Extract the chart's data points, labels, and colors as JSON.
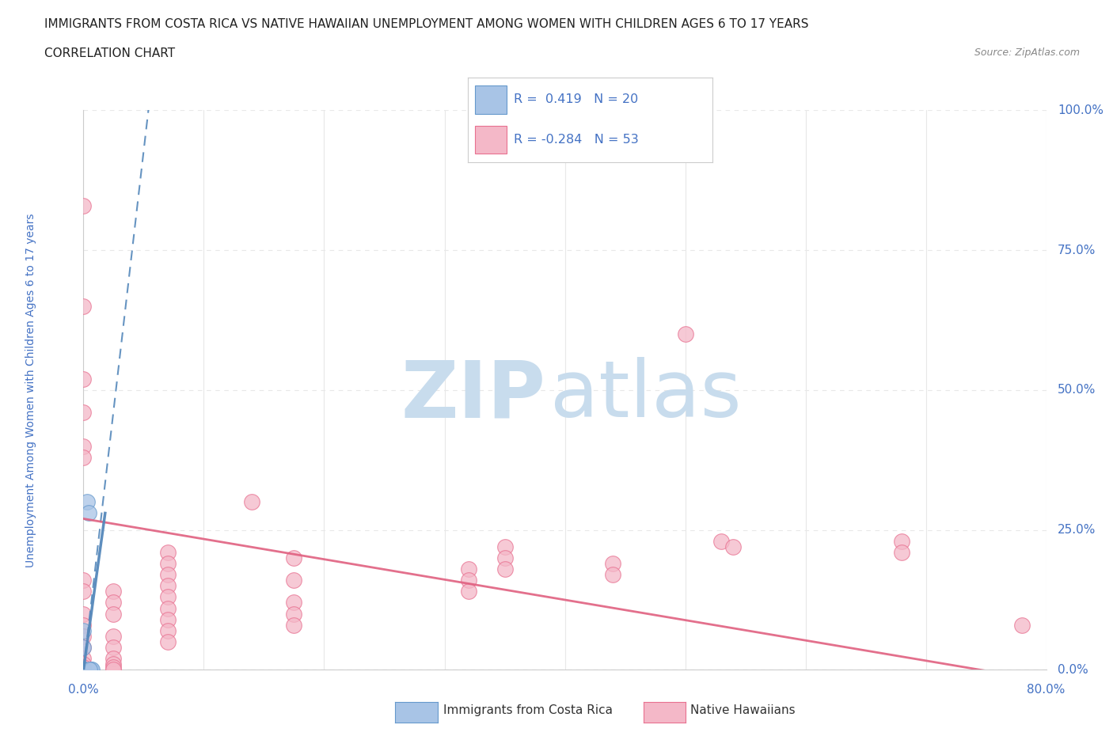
{
  "title": "IMMIGRANTS FROM COSTA RICA VS NATIVE HAWAIIAN UNEMPLOYMENT AMONG WOMEN WITH CHILDREN AGES 6 TO 17 YEARS",
  "subtitle": "CORRELATION CHART",
  "source": "Source: ZipAtlas.com",
  "ylabel": "Unemployment Among Women with Children Ages 6 to 17 years",
  "xlim": [
    0,
    0.8
  ],
  "ylim": [
    0,
    1.0
  ],
  "ytick_vals": [
    0.0,
    0.25,
    0.5,
    0.75,
    1.0
  ],
  "ytick_labels": [
    "0.0%",
    "25.0%",
    "50.0%",
    "75.0%",
    "100.0%"
  ],
  "r_blue": 0.419,
  "n_blue": 20,
  "r_pink": -0.284,
  "n_pink": 53,
  "blue_scatter_color": "#a8c4e6",
  "blue_edge_color": "#6699cc",
  "pink_scatter_color": "#f4b8c8",
  "pink_edge_color": "#e87090",
  "trend_blue_color": "#5588bb",
  "trend_pink_color": "#e06080",
  "blue_scatter": [
    [
      0.0,
      0.0
    ],
    [
      0.0,
      0.0
    ],
    [
      0.0,
      0.0
    ],
    [
      0.0,
      0.0
    ],
    [
      0.0,
      0.0
    ],
    [
      0.0,
      0.0
    ],
    [
      0.0,
      0.0
    ],
    [
      0.0,
      0.0
    ],
    [
      0.0,
      0.0
    ],
    [
      0.0,
      0.0
    ],
    [
      0.0,
      0.0
    ],
    [
      0.0,
      0.0
    ],
    [
      0.0,
      0.0
    ],
    [
      0.003,
      0.3
    ],
    [
      0.004,
      0.28
    ],
    [
      0.0,
      0.07
    ],
    [
      0.0,
      0.04
    ],
    [
      0.006,
      0.0
    ],
    [
      0.007,
      0.0
    ],
    [
      0.005,
      0.0
    ]
  ],
  "pink_scatter": [
    [
      0.0,
      0.83
    ],
    [
      0.0,
      0.65
    ],
    [
      0.0,
      0.52
    ],
    [
      0.0,
      0.46
    ],
    [
      0.0,
      0.4
    ],
    [
      0.0,
      0.38
    ],
    [
      0.0,
      0.16
    ],
    [
      0.0,
      0.14
    ],
    [
      0.0,
      0.1
    ],
    [
      0.0,
      0.08
    ],
    [
      0.0,
      0.06
    ],
    [
      0.0,
      0.04
    ],
    [
      0.0,
      0.02
    ],
    [
      0.0,
      0.01
    ],
    [
      0.0,
      0.005
    ],
    [
      0.025,
      0.14
    ],
    [
      0.025,
      0.12
    ],
    [
      0.025,
      0.1
    ],
    [
      0.025,
      0.06
    ],
    [
      0.025,
      0.04
    ],
    [
      0.025,
      0.02
    ],
    [
      0.025,
      0.01
    ],
    [
      0.025,
      0.005
    ],
    [
      0.025,
      0.0
    ],
    [
      0.07,
      0.21
    ],
    [
      0.07,
      0.19
    ],
    [
      0.07,
      0.17
    ],
    [
      0.07,
      0.15
    ],
    [
      0.07,
      0.13
    ],
    [
      0.07,
      0.11
    ],
    [
      0.07,
      0.09
    ],
    [
      0.07,
      0.07
    ],
    [
      0.07,
      0.05
    ],
    [
      0.14,
      0.3
    ],
    [
      0.175,
      0.2
    ],
    [
      0.175,
      0.16
    ],
    [
      0.175,
      0.12
    ],
    [
      0.175,
      0.1
    ],
    [
      0.175,
      0.08
    ],
    [
      0.32,
      0.18
    ],
    [
      0.32,
      0.16
    ],
    [
      0.32,
      0.14
    ],
    [
      0.35,
      0.22
    ],
    [
      0.35,
      0.2
    ],
    [
      0.35,
      0.18
    ],
    [
      0.44,
      0.19
    ],
    [
      0.44,
      0.17
    ],
    [
      0.5,
      0.6
    ],
    [
      0.53,
      0.23
    ],
    [
      0.54,
      0.22
    ],
    [
      0.68,
      0.23
    ],
    [
      0.68,
      0.21
    ],
    [
      0.78,
      0.08
    ]
  ],
  "watermark_zip": "ZIP",
  "watermark_atlas": "atlas",
  "watermark_color": "#c8dced",
  "legend_box_blue": "#a8c4e6",
  "legend_box_pink": "#f4b8c8",
  "legend_text_color": "#4472c4",
  "axis_label_color": "#4472c4",
  "grid_color": "#e8e8e8",
  "grid_dash": [
    4,
    4
  ],
  "background_color": "#ffffff"
}
